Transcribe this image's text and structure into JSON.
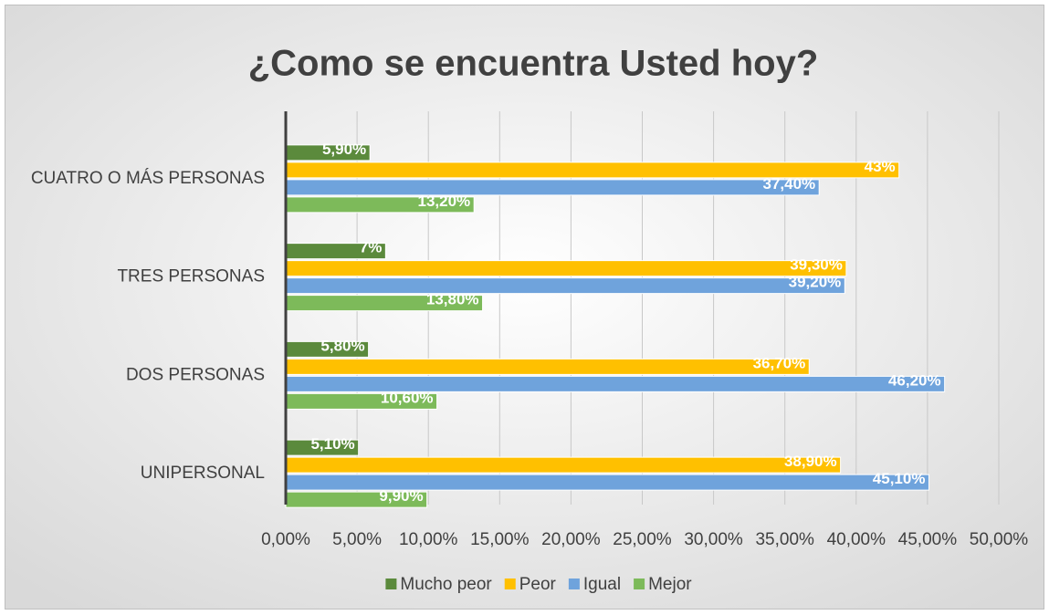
{
  "chart_data": {
    "type": "hbar",
    "title": "¿Como se encuentra Usted hoy?",
    "categories": [
      "CUATRO O MÁS PERSONAS",
      "TRES PERSONAS",
      "DOS PERSONAS",
      "UNIPERSONAL"
    ],
    "series": [
      {
        "name": "Mucho peor",
        "color": "#5b8a3c",
        "values": [
          5.9,
          7,
          5.8,
          5.1
        ],
        "value_labels": [
          "5,90%",
          "7%",
          "5,80%",
          "5,10%"
        ]
      },
      {
        "name": "Peor",
        "color": "#ffc000",
        "values": [
          43,
          39.3,
          36.7,
          38.9
        ],
        "value_labels": [
          "43%",
          "39,30%",
          "36,70%",
          "38,90%"
        ]
      },
      {
        "name": "Igual",
        "color": "#6fa3dc",
        "values": [
          37.4,
          39.2,
          46.2,
          45.1
        ],
        "value_labels": [
          "37,40%",
          "39,20%",
          "46,20%",
          "45,10%"
        ]
      },
      {
        "name": "Mejor",
        "color": "#7dba5a",
        "values": [
          13.2,
          13.8,
          10.6,
          9.9
        ],
        "value_labels": [
          "13,20%",
          "13,80%",
          "10,60%",
          "9,90%"
        ]
      }
    ],
    "xlim": [
      0,
      50
    ],
    "xticks": [
      {
        "value": 0,
        "label": "0,00%"
      },
      {
        "value": 5,
        "label": "5,00%"
      },
      {
        "value": 10,
        "label": "10,00%"
      },
      {
        "value": 15,
        "label": "15,00%"
      },
      {
        "value": 20,
        "label": "20,00%"
      },
      {
        "value": 25,
        "label": "25,00%"
      },
      {
        "value": 30,
        "label": "30,00%"
      },
      {
        "value": 35,
        "label": "35,00%"
      },
      {
        "value": 40,
        "label": "40,00%"
      },
      {
        "value": 45,
        "label": "45,00%"
      },
      {
        "value": 50,
        "label": "50,00%"
      }
    ],
    "grid": true,
    "legend": "bottom"
  }
}
